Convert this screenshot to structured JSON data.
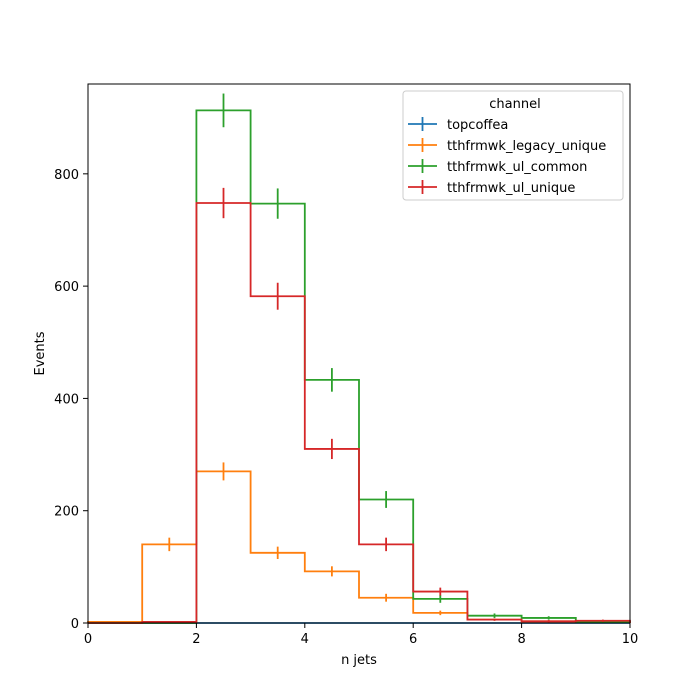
{
  "chart_data": {
    "type": "histogram",
    "xlabel": "n jets",
    "ylabel": "Events",
    "xlim": [
      0,
      10
    ],
    "ylim": [
      0,
      960
    ],
    "x_ticks": [
      0,
      2,
      4,
      6,
      8,
      10
    ],
    "y_ticks": [
      0,
      200,
      400,
      600,
      800
    ],
    "bin_edges": [
      0,
      1,
      2,
      3,
      4,
      5,
      6,
      7,
      8,
      9,
      10
    ],
    "legend": {
      "title": "channel",
      "placement": "upper right"
    },
    "series": [
      {
        "name": "topcoffea",
        "color": "#1f77b4",
        "values": [
          0,
          0,
          0,
          0,
          0,
          0,
          0,
          0,
          0,
          0
        ],
        "errors": [
          0,
          0,
          0,
          0,
          0,
          0,
          0,
          0,
          0,
          0
        ]
      },
      {
        "name": "tthfrmwk_legacy_unique",
        "color": "#ff7f0e",
        "values": [
          2,
          140,
          270,
          125,
          92,
          45,
          18,
          6,
          3,
          1
        ],
        "errors": [
          1,
          12,
          16,
          11,
          9,
          7,
          4,
          2,
          2,
          1
        ]
      },
      {
        "name": "tthfrmwk_ul_common",
        "color": "#2ca02c",
        "values": [
          0,
          0,
          913,
          747,
          433,
          220,
          43,
          13,
          9,
          2
        ],
        "errors": [
          0,
          0,
          30,
          27,
          21,
          15,
          7,
          4,
          3,
          1
        ]
      },
      {
        "name": "tthfrmwk_ul_unique",
        "color": "#d62728",
        "values": [
          0,
          2,
          748,
          582,
          310,
          140,
          56,
          6,
          3,
          4
        ],
        "errors": [
          0,
          1,
          27,
          24,
          18,
          12,
          7,
          2,
          2,
          2
        ]
      }
    ]
  }
}
